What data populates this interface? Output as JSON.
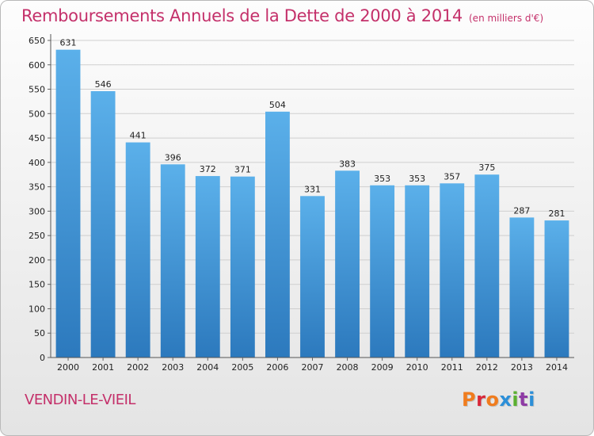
{
  "header": {
    "title": "Remboursements Annuels de la Dette de 2000 à 2014",
    "subtitle": "(en milliers d'€)"
  },
  "footer": {
    "commune": "VENDIN-LE-VIEIL",
    "logo_text": "Proxiti",
    "logo_colors": [
      "#f07c1e",
      "#d8283a",
      "#f07c1e",
      "#2c8fd8",
      "#5ab030",
      "#8e3ba5",
      "#2c8fd8"
    ]
  },
  "colors": {
    "bar_top": "#5bb0ea",
    "bar_bottom": "#2c79bd",
    "title": "#c4306a"
  },
  "chart_data": {
    "type": "bar",
    "categories": [
      "2000",
      "2001",
      "2002",
      "2003",
      "2004",
      "2005",
      "2006",
      "2007",
      "2008",
      "2009",
      "2010",
      "2011",
      "2012",
      "2013",
      "2014"
    ],
    "values": [
      631,
      546,
      441,
      396,
      372,
      371,
      504,
      331,
      383,
      353,
      353,
      357,
      375,
      287,
      281
    ],
    "ylim": [
      0,
      650
    ],
    "yticks": [
      0,
      50,
      100,
      150,
      200,
      250,
      300,
      350,
      400,
      450,
      500,
      550,
      600,
      650
    ],
    "grid": true
  }
}
